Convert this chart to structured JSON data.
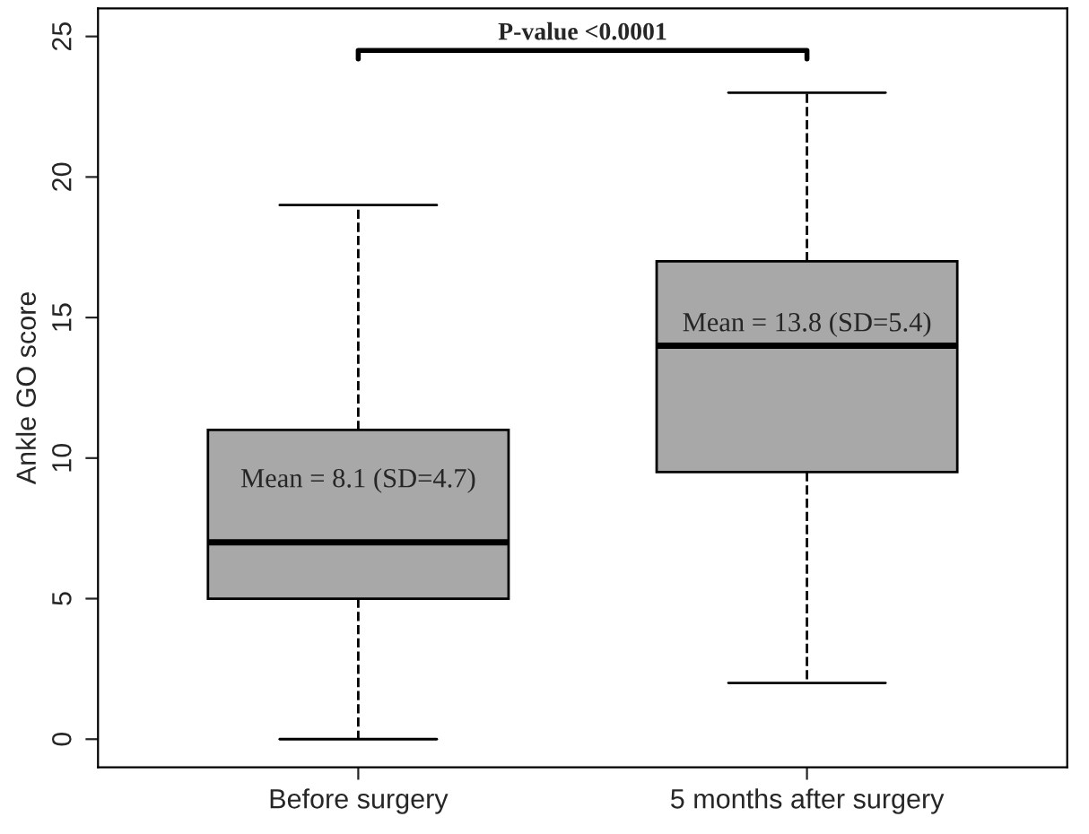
{
  "chart_data": {
    "type": "box",
    "categories": [
      "Before surgery",
      "5 months after surgery"
    ],
    "boxes": [
      {
        "low": 0,
        "q1": 5,
        "median": 7,
        "q3": 11,
        "high": 19
      },
      {
        "low": 2,
        "q1": 9.5,
        "median": 14,
        "q3": 17,
        "high": 23
      }
    ],
    "color": "#a8a8a8",
    "ylabel": "Ankle GO score",
    "ylim": [
      -1,
      26
    ],
    "yticks": [
      0,
      5,
      10,
      15,
      20,
      25
    ],
    "annotations": [
      "P-value <0.0001",
      "Mean = 8.1 (SD=4.7)",
      "Mean = 13.8 (SD=5.4)"
    ]
  }
}
